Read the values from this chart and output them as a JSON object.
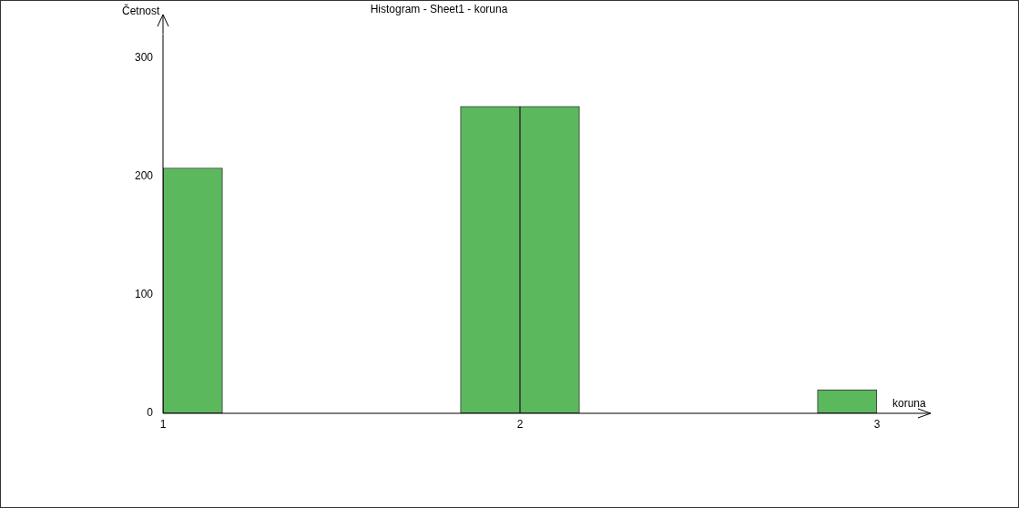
{
  "chart_data": {
    "type": "histogram",
    "title": "Histogram - Sheet1 - koruna",
    "xlabel": "koruna",
    "ylabel": "Četnost",
    "bins": [
      1,
      1.167,
      1.333,
      1.5,
      1.667,
      1.833,
      2,
      2.167,
      2.333,
      2.5,
      2.667,
      2.833,
      3
    ],
    "values": [
      207,
      0,
      0,
      0,
      0,
      259,
      259,
      0,
      0,
      0,
      0,
      20
    ],
    "color": "#5cb85c",
    "xlim": [
      1,
      3
    ],
    "xticks": [
      1,
      2,
      3
    ],
    "ylim": [
      0,
      320
    ],
    "yticks": [
      0,
      100,
      200,
      300
    ],
    "grid": false,
    "legend": false
  }
}
